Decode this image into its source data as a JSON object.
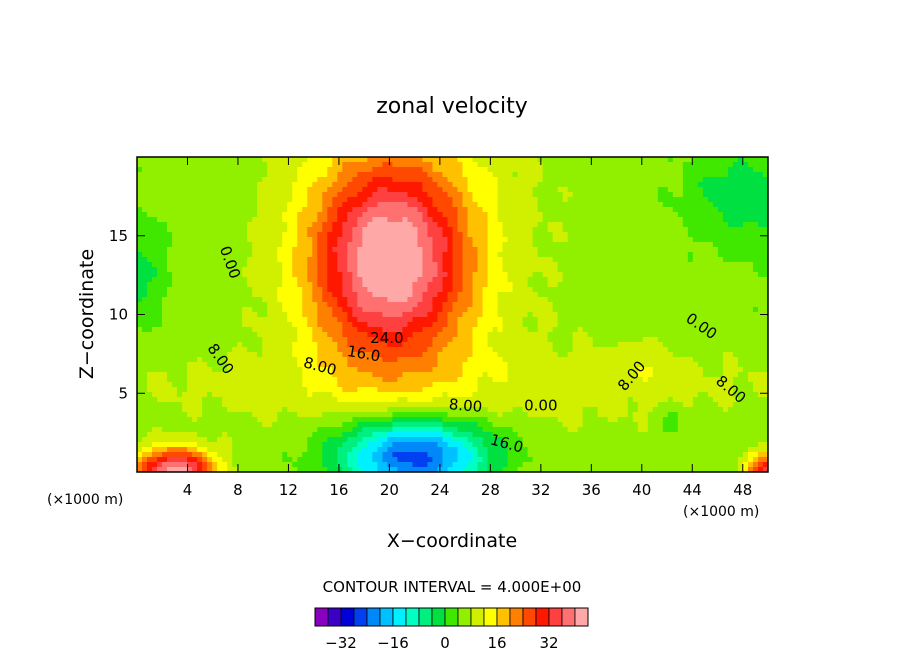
{
  "chart_data": {
    "type": "heatmap",
    "title": "zonal velocity",
    "xlabel": "X−coordinate",
    "ylabel": "Z−coordinate",
    "x_unit_left": "(×1000 m)",
    "x_unit_right": "(×1000 m)",
    "xlim": [
      0,
      50
    ],
    "ylim": [
      0,
      20
    ],
    "x_ticks": [
      4,
      8,
      12,
      16,
      20,
      24,
      28,
      32,
      36,
      40,
      44,
      48
    ],
    "x_tick_labels": [
      "4",
      "8",
      "12",
      "16",
      "20",
      "24",
      "28",
      "32",
      "36",
      "40",
      "44",
      "48"
    ],
    "y_ticks": [
      5,
      10,
      15
    ],
    "y_tick_labels": [
      "5",
      "10",
      "15"
    ],
    "contour_interval_label": "CONTOUR INTERVAL = 4.000E+00",
    "contour_interval": 4,
    "contour_labels": [
      {
        "text": "0.00",
        "x": 7,
        "z": 13.2,
        "rot": 70
      },
      {
        "text": "8.00",
        "x": 6.3,
        "z": 7.0,
        "rot": 55
      },
      {
        "text": "24.0",
        "x": 19.8,
        "z": 8.2,
        "rot": 0
      },
      {
        "text": "16.0",
        "x": 17.9,
        "z": 7.2,
        "rot": 10
      },
      {
        "text": "8.00",
        "x": 14.4,
        "z": 6.4,
        "rot": 15
      },
      {
        "text": "8.00",
        "x": 26.0,
        "z": 3.9,
        "rot": 5
      },
      {
        "text": "0.00",
        "x": 32.0,
        "z": 3.9,
        "rot": 0
      },
      {
        "text": "16.0",
        "x": 29.2,
        "z": 1.5,
        "rot": 15
      },
      {
        "text": "8.00",
        "x": 39.5,
        "z": 5.9,
        "rot": -50
      },
      {
        "text": "0.00",
        "x": 44.5,
        "z": 9.0,
        "rot": 35
      },
      {
        "text": "8.00",
        "x": 46.8,
        "z": 5.0,
        "rot": 40
      }
    ],
    "colorbar": {
      "colors": [
        "#8a00c0",
        "#3a00c8",
        "#0000d8",
        "#0040f0",
        "#0088f8",
        "#00c0ff",
        "#00f0ff",
        "#00ffc0",
        "#00f080",
        "#00e040",
        "#40e800",
        "#90f000",
        "#d0f000",
        "#ffff00",
        "#ffc000",
        "#ff8000",
        "#ff4800",
        "#ff1800",
        "#ff4040",
        "#ff7070",
        "#ffa8a8"
      ],
      "tick_values": [
        -32,
        -16,
        0,
        16,
        32
      ],
      "tick_labels": [
        "−32",
        "−16",
        "0",
        "16",
        "32"
      ],
      "min": -40,
      "max": 44
    },
    "grid": false
  }
}
